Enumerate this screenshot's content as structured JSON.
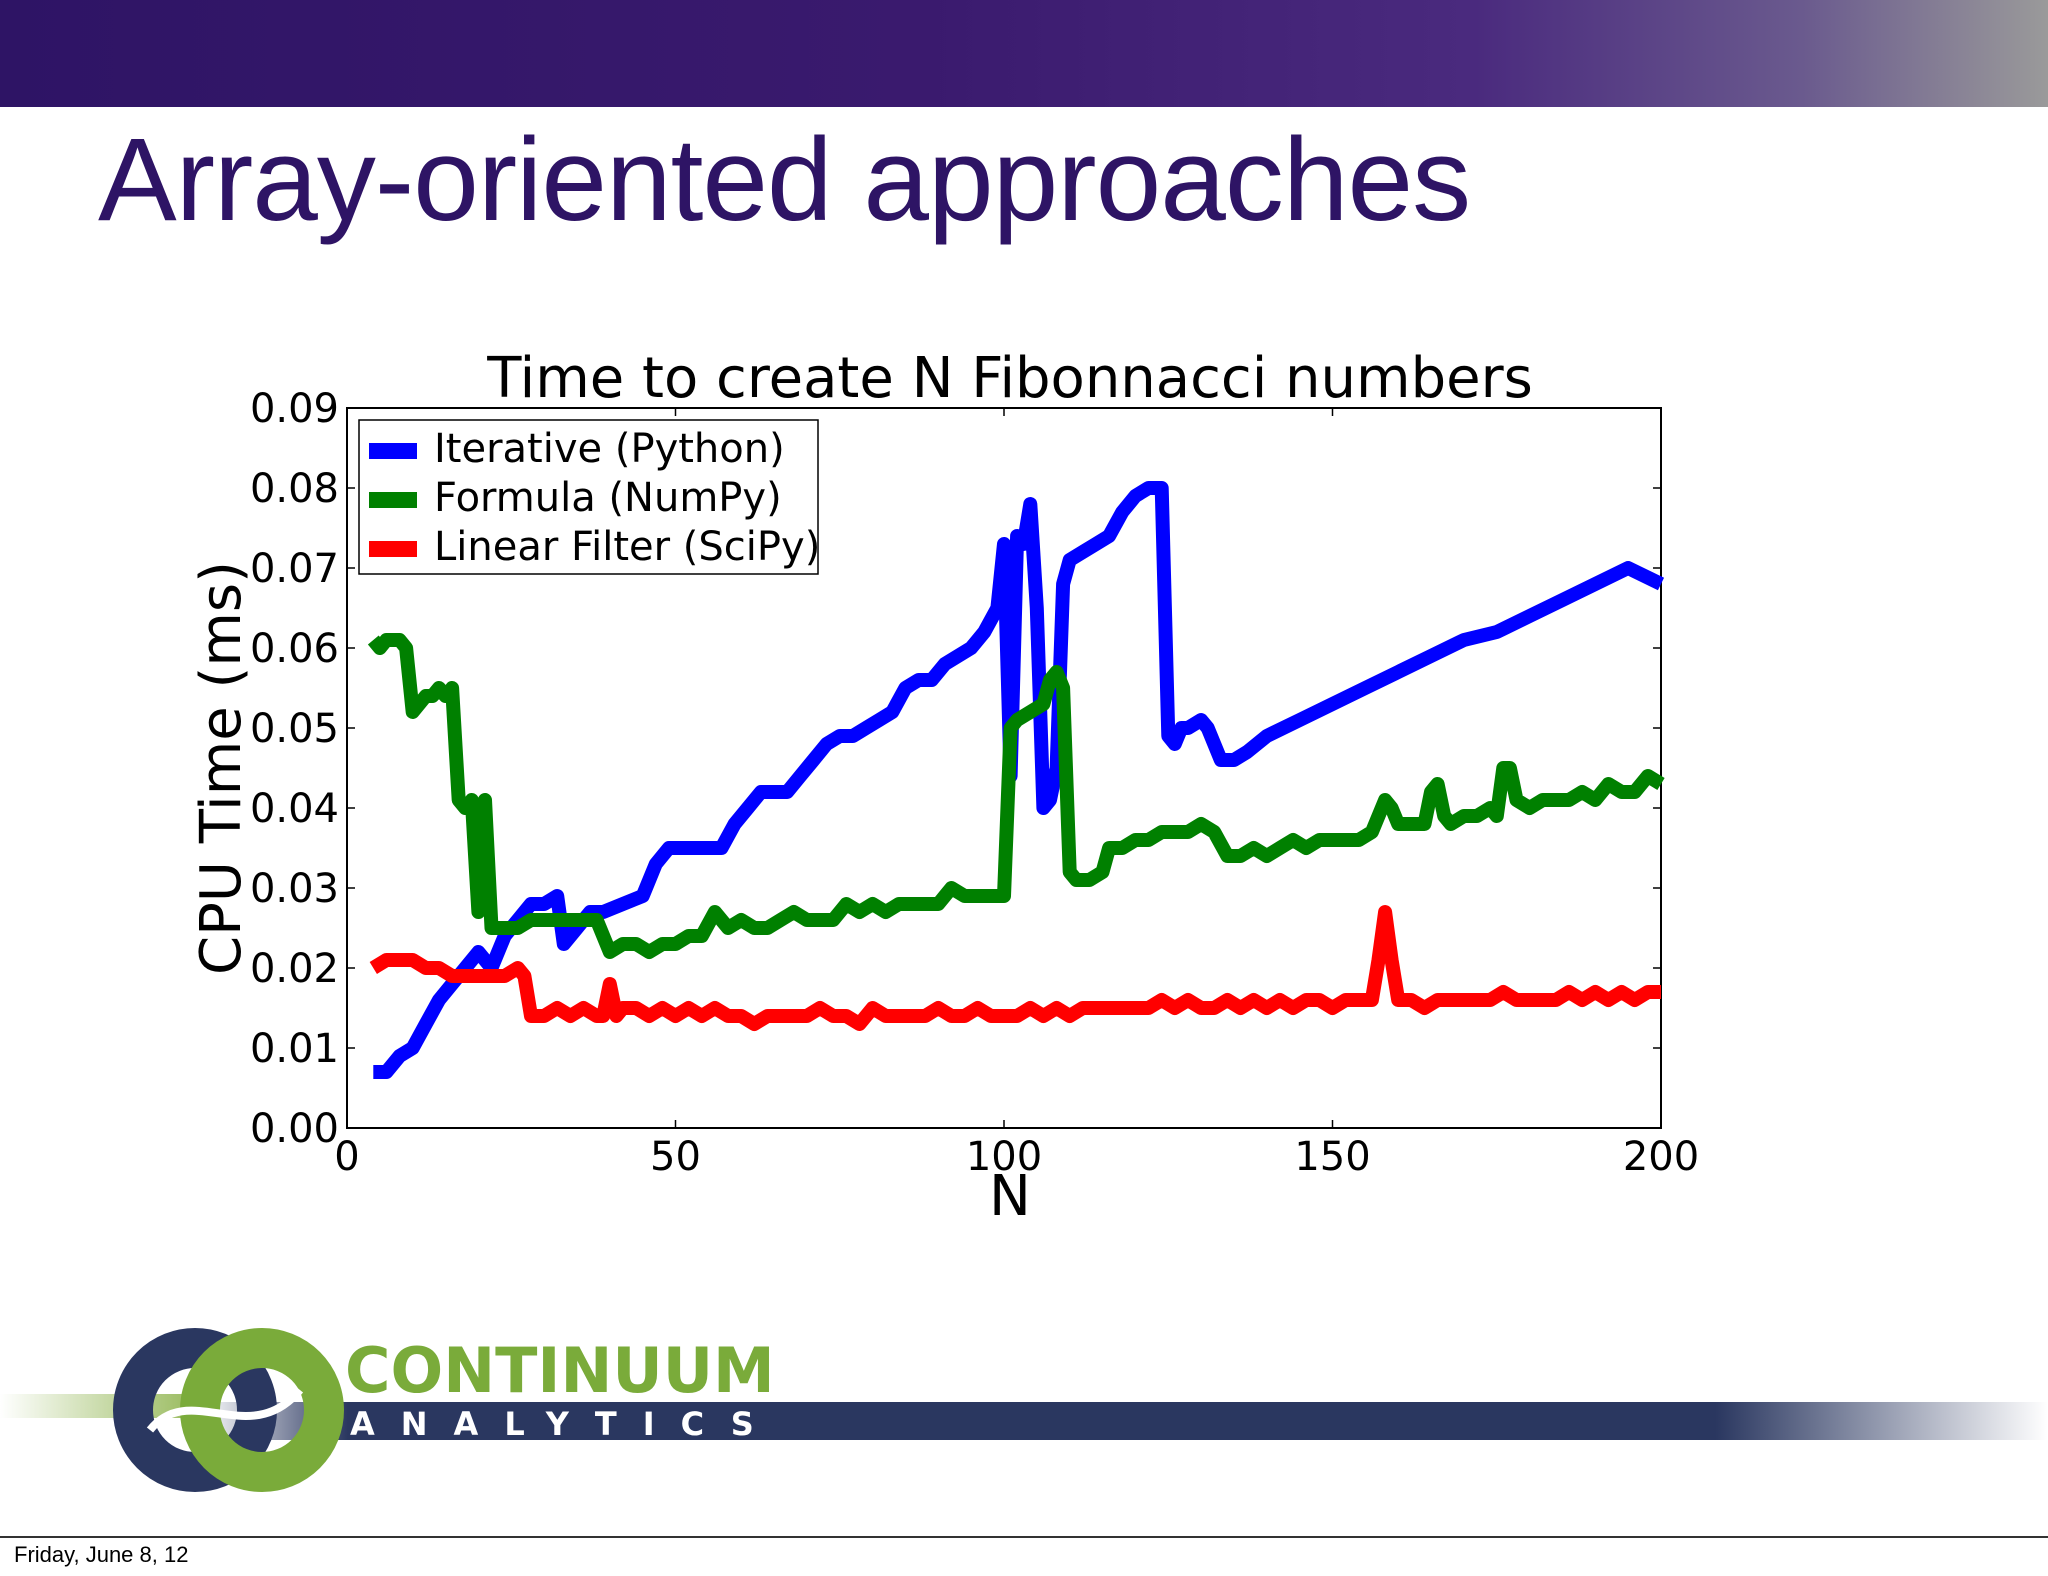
{
  "slide": {
    "title": "Array-oriented approaches",
    "footer_date": "Friday, June 8, 12",
    "accent_color": "#2e1465"
  },
  "logo": {
    "line1": "CONTINUUM",
    "line2": "ANALYTICS",
    "colors": {
      "navy": "#2a3760",
      "green": "#7aab3a"
    }
  },
  "chart_data": {
    "type": "line",
    "title": "Time to create N Fibonnacci numbers",
    "xlabel": "N",
    "ylabel": "CPU Time (ms)",
    "xlim": [
      0,
      200
    ],
    "ylim": [
      0,
      0.09
    ],
    "xticks": [
      0,
      50,
      100,
      150,
      200
    ],
    "xtick_labels": [
      "0",
      "50",
      "100",
      "150",
      "200"
    ],
    "yticks": [
      0,
      0.01,
      0.02,
      0.03,
      0.04,
      0.05,
      0.06,
      0.07,
      0.08,
      0.09
    ],
    "ytick_labels": [
      "0.00",
      "0.01",
      "0.02",
      "0.03",
      "0.04",
      "0.05",
      "0.06",
      "0.07",
      "0.08",
      "0.09"
    ],
    "grid": false,
    "legend": "top-left",
    "series": [
      {
        "name": "Iterative (Python)",
        "color": "#0000ff",
        "x": [
          4,
          6,
          8,
          10,
          12,
          14,
          16,
          18,
          20,
          22,
          24,
          26,
          28,
          30,
          32,
          33,
          35,
          37,
          39,
          42,
          45,
          47,
          49,
          51,
          53,
          55,
          57,
          59,
          61,
          63,
          65,
          67,
          69,
          71,
          73,
          75,
          77,
          79,
          81,
          83,
          85,
          87,
          89,
          91,
          93,
          95,
          97,
          99,
          100,
          101,
          102,
          103,
          104,
          105,
          106,
          107,
          108,
          109,
          110,
          112,
          114,
          116,
          118,
          120,
          122,
          124,
          125,
          126,
          127,
          128,
          130,
          131,
          133,
          135,
          137,
          140,
          145,
          150,
          155,
          160,
          165,
          170,
          175,
          180,
          185,
          190,
          195,
          200
        ],
        "y": [
          0.007,
          0.007,
          0.009,
          0.01,
          0.013,
          0.016,
          0.018,
          0.02,
          0.022,
          0.02,
          0.024,
          0.026,
          0.028,
          0.028,
          0.029,
          0.023,
          0.025,
          0.027,
          0.027,
          0.028,
          0.029,
          0.033,
          0.035,
          0.035,
          0.035,
          0.035,
          0.035,
          0.038,
          0.04,
          0.042,
          0.042,
          0.042,
          0.044,
          0.046,
          0.048,
          0.049,
          0.049,
          0.05,
          0.051,
          0.052,
          0.055,
          0.056,
          0.056,
          0.058,
          0.059,
          0.06,
          0.062,
          0.065,
          0.073,
          0.044,
          0.074,
          0.073,
          0.078,
          0.065,
          0.04,
          0.041,
          0.045,
          0.068,
          0.071,
          0.072,
          0.073,
          0.074,
          0.077,
          0.079,
          0.08,
          0.08,
          0.049,
          0.048,
          0.05,
          0.05,
          0.051,
          0.05,
          0.046,
          0.046,
          0.047,
          0.049,
          0.051,
          0.053,
          0.055,
          0.057,
          0.059,
          0.061,
          0.062,
          0.064,
          0.066,
          0.068,
          0.07,
          0.068
        ]
      },
      {
        "name": "Formula (NumPy)",
        "color": "#008000",
        "x": [
          4,
          5,
          6,
          8,
          9,
          10,
          12,
          13,
          14,
          15,
          16,
          17,
          18,
          19,
          20,
          21,
          22,
          24,
          26,
          28,
          30,
          34,
          36,
          38,
          40,
          42,
          44,
          46,
          48,
          50,
          52,
          54,
          56,
          58,
          60,
          62,
          64,
          66,
          68,
          70,
          72,
          74,
          76,
          78,
          80,
          82,
          84,
          86,
          88,
          90,
          92,
          94,
          96,
          98,
          100,
          101,
          102,
          104,
          106,
          107,
          108,
          109,
          110,
          111,
          113,
          115,
          116,
          118,
          120,
          122,
          124,
          126,
          128,
          130,
          132,
          134,
          136,
          138,
          140,
          142,
          144,
          146,
          148,
          150,
          152,
          154,
          156,
          158,
          159,
          160,
          162,
          164,
          165,
          166,
          167,
          168,
          170,
          172,
          174,
          175,
          176,
          177,
          178,
          180,
          182,
          184,
          186,
          188,
          190,
          192,
          194,
          196,
          198,
          200
        ],
        "y": [
          0.061,
          0.06,
          0.061,
          0.061,
          0.06,
          0.052,
          0.054,
          0.054,
          0.055,
          0.054,
          0.055,
          0.041,
          0.04,
          0.041,
          0.027,
          0.041,
          0.025,
          0.025,
          0.025,
          0.026,
          0.026,
          0.026,
          0.026,
          0.026,
          0.022,
          0.023,
          0.023,
          0.022,
          0.023,
          0.023,
          0.024,
          0.024,
          0.027,
          0.025,
          0.026,
          0.025,
          0.025,
          0.026,
          0.027,
          0.026,
          0.026,
          0.026,
          0.028,
          0.027,
          0.028,
          0.027,
          0.028,
          0.028,
          0.028,
          0.028,
          0.03,
          0.029,
          0.029,
          0.029,
          0.029,
          0.05,
          0.051,
          0.052,
          0.053,
          0.056,
          0.057,
          0.055,
          0.032,
          0.031,
          0.031,
          0.032,
          0.035,
          0.035,
          0.036,
          0.036,
          0.037,
          0.037,
          0.037,
          0.038,
          0.037,
          0.034,
          0.034,
          0.035,
          0.034,
          0.035,
          0.036,
          0.035,
          0.036,
          0.036,
          0.036,
          0.036,
          0.037,
          0.041,
          0.04,
          0.038,
          0.038,
          0.038,
          0.042,
          0.043,
          0.039,
          0.038,
          0.039,
          0.039,
          0.04,
          0.039,
          0.045,
          0.045,
          0.041,
          0.04,
          0.041,
          0.041,
          0.041,
          0.042,
          0.041,
          0.043,
          0.042,
          0.042,
          0.044,
          0.043
        ]
      },
      {
        "name": "Linear Filter (SciPy)",
        "color": "#ff0000",
        "x": [
          4,
          6,
          8,
          10,
          12,
          14,
          16,
          18,
          20,
          22,
          24,
          26,
          27,
          28,
          30,
          32,
          34,
          36,
          38,
          39,
          40,
          41,
          42,
          44,
          46,
          48,
          50,
          52,
          54,
          56,
          58,
          60,
          62,
          64,
          66,
          68,
          70,
          72,
          74,
          76,
          78,
          80,
          82,
          84,
          86,
          88,
          90,
          92,
          94,
          96,
          98,
          100,
          102,
          104,
          106,
          108,
          110,
          112,
          114,
          116,
          118,
          120,
          122,
          124,
          126,
          128,
          130,
          132,
          134,
          136,
          138,
          140,
          142,
          144,
          146,
          148,
          150,
          152,
          154,
          156,
          157,
          158,
          159,
          160,
          162,
          164,
          166,
          168,
          170,
          172,
          174,
          176,
          178,
          180,
          182,
          184,
          186,
          188,
          190,
          192,
          194,
          196,
          198,
          200
        ],
        "y": [
          0.02,
          0.021,
          0.021,
          0.021,
          0.02,
          0.02,
          0.019,
          0.019,
          0.019,
          0.019,
          0.019,
          0.02,
          0.019,
          0.014,
          0.014,
          0.015,
          0.014,
          0.015,
          0.014,
          0.014,
          0.018,
          0.014,
          0.015,
          0.015,
          0.014,
          0.015,
          0.014,
          0.015,
          0.014,
          0.015,
          0.014,
          0.014,
          0.013,
          0.014,
          0.014,
          0.014,
          0.014,
          0.015,
          0.014,
          0.014,
          0.013,
          0.015,
          0.014,
          0.014,
          0.014,
          0.014,
          0.015,
          0.014,
          0.014,
          0.015,
          0.014,
          0.014,
          0.014,
          0.015,
          0.014,
          0.015,
          0.014,
          0.015,
          0.015,
          0.015,
          0.015,
          0.015,
          0.015,
          0.016,
          0.015,
          0.016,
          0.015,
          0.015,
          0.016,
          0.015,
          0.016,
          0.015,
          0.016,
          0.015,
          0.016,
          0.016,
          0.015,
          0.016,
          0.016,
          0.016,
          0.021,
          0.027,
          0.021,
          0.016,
          0.016,
          0.015,
          0.016,
          0.016,
          0.016,
          0.016,
          0.016,
          0.017,
          0.016,
          0.016,
          0.016,
          0.016,
          0.017,
          0.016,
          0.017,
          0.016,
          0.017,
          0.016,
          0.017,
          0.017
        ]
      }
    ]
  }
}
